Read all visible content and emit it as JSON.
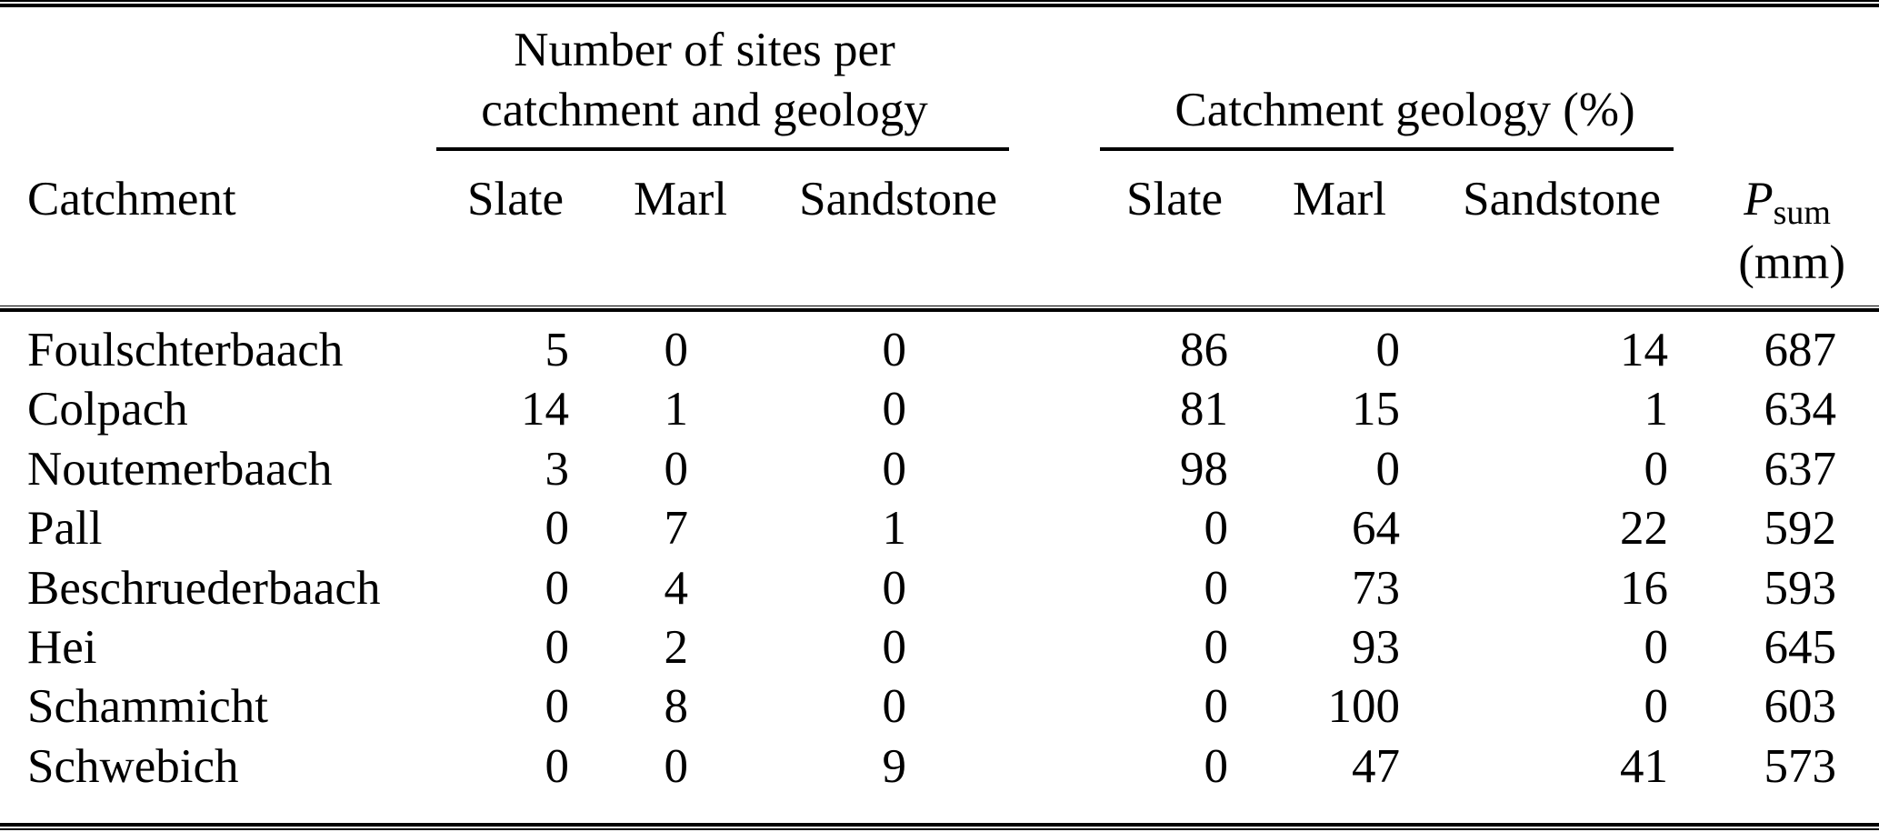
{
  "colors": {
    "text": "#000000",
    "background": "#ffffff"
  },
  "header": {
    "group1_line1": "Number of sites per",
    "group1_line2": "catchment and geology",
    "group2": "Catchment geology (%)",
    "col_catchment": "Catchment",
    "sites_slate": "Slate",
    "sites_marl": "Marl",
    "sites_sandstone": "Sandstone",
    "geo_slate": "Slate",
    "geo_marl": "Marl",
    "geo_sandstone": "Sandstone",
    "psum_symbol": "P",
    "psum_subscript": "sum",
    "psum_unit": "(mm)"
  },
  "rows": [
    {
      "catchment": "Foulschterbaach",
      "sites_slate": 5,
      "sites_marl": 0,
      "sites_sandstone": 0,
      "geo_slate": 86,
      "geo_marl": 0,
      "geo_sandstone": 14,
      "psum": 687
    },
    {
      "catchment": "Colpach",
      "sites_slate": 14,
      "sites_marl": 1,
      "sites_sandstone": 0,
      "geo_slate": 81,
      "geo_marl": 15,
      "geo_sandstone": 1,
      "psum": 634
    },
    {
      "catchment": "Noutemerbaach",
      "sites_slate": 3,
      "sites_marl": 0,
      "sites_sandstone": 0,
      "geo_slate": 98,
      "geo_marl": 0,
      "geo_sandstone": 0,
      "psum": 637
    },
    {
      "catchment": "Pall",
      "sites_slate": 0,
      "sites_marl": 7,
      "sites_sandstone": 1,
      "geo_slate": 0,
      "geo_marl": 64,
      "geo_sandstone": 22,
      "psum": 592
    },
    {
      "catchment": "Beschruederbaach",
      "sites_slate": 0,
      "sites_marl": 4,
      "sites_sandstone": 0,
      "geo_slate": 0,
      "geo_marl": 73,
      "geo_sandstone": 16,
      "psum": 593
    },
    {
      "catchment": "Hei",
      "sites_slate": 0,
      "sites_marl": 2,
      "sites_sandstone": 0,
      "geo_slate": 0,
      "geo_marl": 93,
      "geo_sandstone": 0,
      "psum": 645
    },
    {
      "catchment": "Schammicht",
      "sites_slate": 0,
      "sites_marl": 8,
      "sites_sandstone": 0,
      "geo_slate": 0,
      "geo_marl": 100,
      "geo_sandstone": 0,
      "psum": 603
    },
    {
      "catchment": "Schwebich",
      "sites_slate": 0,
      "sites_marl": 0,
      "sites_sandstone": 9,
      "geo_slate": 0,
      "geo_marl": 47,
      "geo_sandstone": 41,
      "psum": 573
    }
  ]
}
